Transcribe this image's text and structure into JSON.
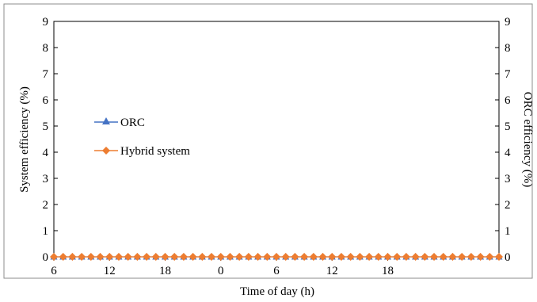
{
  "chart_data": {
    "type": "line",
    "title": "",
    "xlabel": "Time of day (h)",
    "ylabel_left": "System efficiency (%)",
    "ylabel_right": "ORC efficiency (%)",
    "ylim": [
      0,
      9
    ],
    "yticks": [
      "0",
      "1",
      "2",
      "3",
      "4",
      "5",
      "6",
      "7",
      "8",
      "9"
    ],
    "x_hours_elapsed_range": [
      0,
      48
    ],
    "xticks": [
      {
        "hour": 0,
        "label": "6"
      },
      {
        "hour": 6,
        "label": "12"
      },
      {
        "hour": 12,
        "label": "18"
      },
      {
        "hour": 18,
        "label": "0"
      },
      {
        "hour": 24,
        "label": "6"
      },
      {
        "hour": 30,
        "label": "12"
      },
      {
        "hour": 36,
        "label": "18"
      }
    ],
    "grid": false,
    "legend_position": "left-middle",
    "series": [
      {
        "name": "ORC",
        "color": "#4472C4",
        "marker": "triangle",
        "points": [
          [
            0,
            0
          ],
          [
            1,
            0
          ],
          [
            2,
            0
          ],
          [
            3,
            0
          ],
          [
            4,
            0
          ],
          [
            5,
            0
          ],
          [
            6,
            0
          ],
          [
            7,
            0
          ],
          [
            8,
            0
          ],
          [
            9,
            0
          ],
          [
            10,
            0
          ],
          [
            11,
            0
          ],
          [
            12,
            0
          ],
          [
            13,
            0
          ],
          [
            14,
            0
          ],
          [
            15,
            0
          ],
          [
            16,
            0
          ],
          [
            17,
            0
          ],
          [
            18,
            0
          ],
          [
            19,
            0
          ],
          [
            20,
            0
          ],
          [
            21,
            0
          ],
          [
            22,
            0
          ],
          [
            23,
            0
          ],
          [
            24,
            0
          ],
          [
            25,
            0
          ],
          [
            26,
            0
          ],
          [
            27,
            0
          ],
          [
            28,
            0
          ],
          [
            29,
            0
          ],
          [
            30,
            0
          ],
          [
            31,
            0
          ],
          [
            32,
            0
          ],
          [
            33,
            0
          ],
          [
            34,
            0
          ],
          [
            35,
            0
          ],
          [
            36,
            0
          ],
          [
            37,
            0
          ],
          [
            38,
            0
          ],
          [
            39,
            0
          ],
          [
            40,
            0
          ],
          [
            41,
            0
          ],
          [
            42,
            0
          ],
          [
            43,
            0
          ],
          [
            44,
            0
          ],
          [
            45,
            0
          ],
          [
            46,
            0
          ],
          [
            47,
            0
          ],
          [
            48,
            0
          ]
        ]
      },
      {
        "name": "Hybrid system",
        "color": "#ED7D31",
        "marker": "diamond",
        "points": [
          [
            0,
            0
          ],
          [
            1,
            0
          ],
          [
            2,
            0
          ],
          [
            3,
            0
          ],
          [
            4,
            0
          ],
          [
            5,
            0
          ],
          [
            6,
            0
          ],
          [
            7,
            0
          ],
          [
            8,
            0
          ],
          [
            9,
            0
          ],
          [
            10,
            0
          ],
          [
            11,
            0
          ],
          [
            12,
            0
          ],
          [
            13,
            0
          ],
          [
            14,
            0
          ],
          [
            15,
            0
          ],
          [
            16,
            0
          ],
          [
            17,
            0
          ],
          [
            18,
            0
          ],
          [
            19,
            0
          ],
          [
            20,
            0
          ],
          [
            21,
            0
          ],
          [
            22,
            0
          ],
          [
            23,
            0
          ],
          [
            24,
            0
          ],
          [
            25,
            0
          ],
          [
            26,
            0
          ],
          [
            27,
            0
          ],
          [
            28,
            0
          ],
          [
            29,
            0
          ],
          [
            30,
            0
          ],
          [
            31,
            0
          ],
          [
            32,
            0
          ],
          [
            33,
            0
          ],
          [
            34,
            0
          ],
          [
            35,
            0
          ],
          [
            36,
            0
          ],
          [
            37,
            0
          ],
          [
            38,
            0
          ],
          [
            39,
            0
          ],
          [
            40,
            0
          ],
          [
            41,
            0
          ],
          [
            42,
            0
          ],
          [
            43,
            0
          ],
          [
            44,
            0
          ],
          [
            45,
            0
          ],
          [
            46,
            0
          ],
          [
            47,
            0
          ],
          [
            48,
            0
          ]
        ]
      }
    ]
  }
}
